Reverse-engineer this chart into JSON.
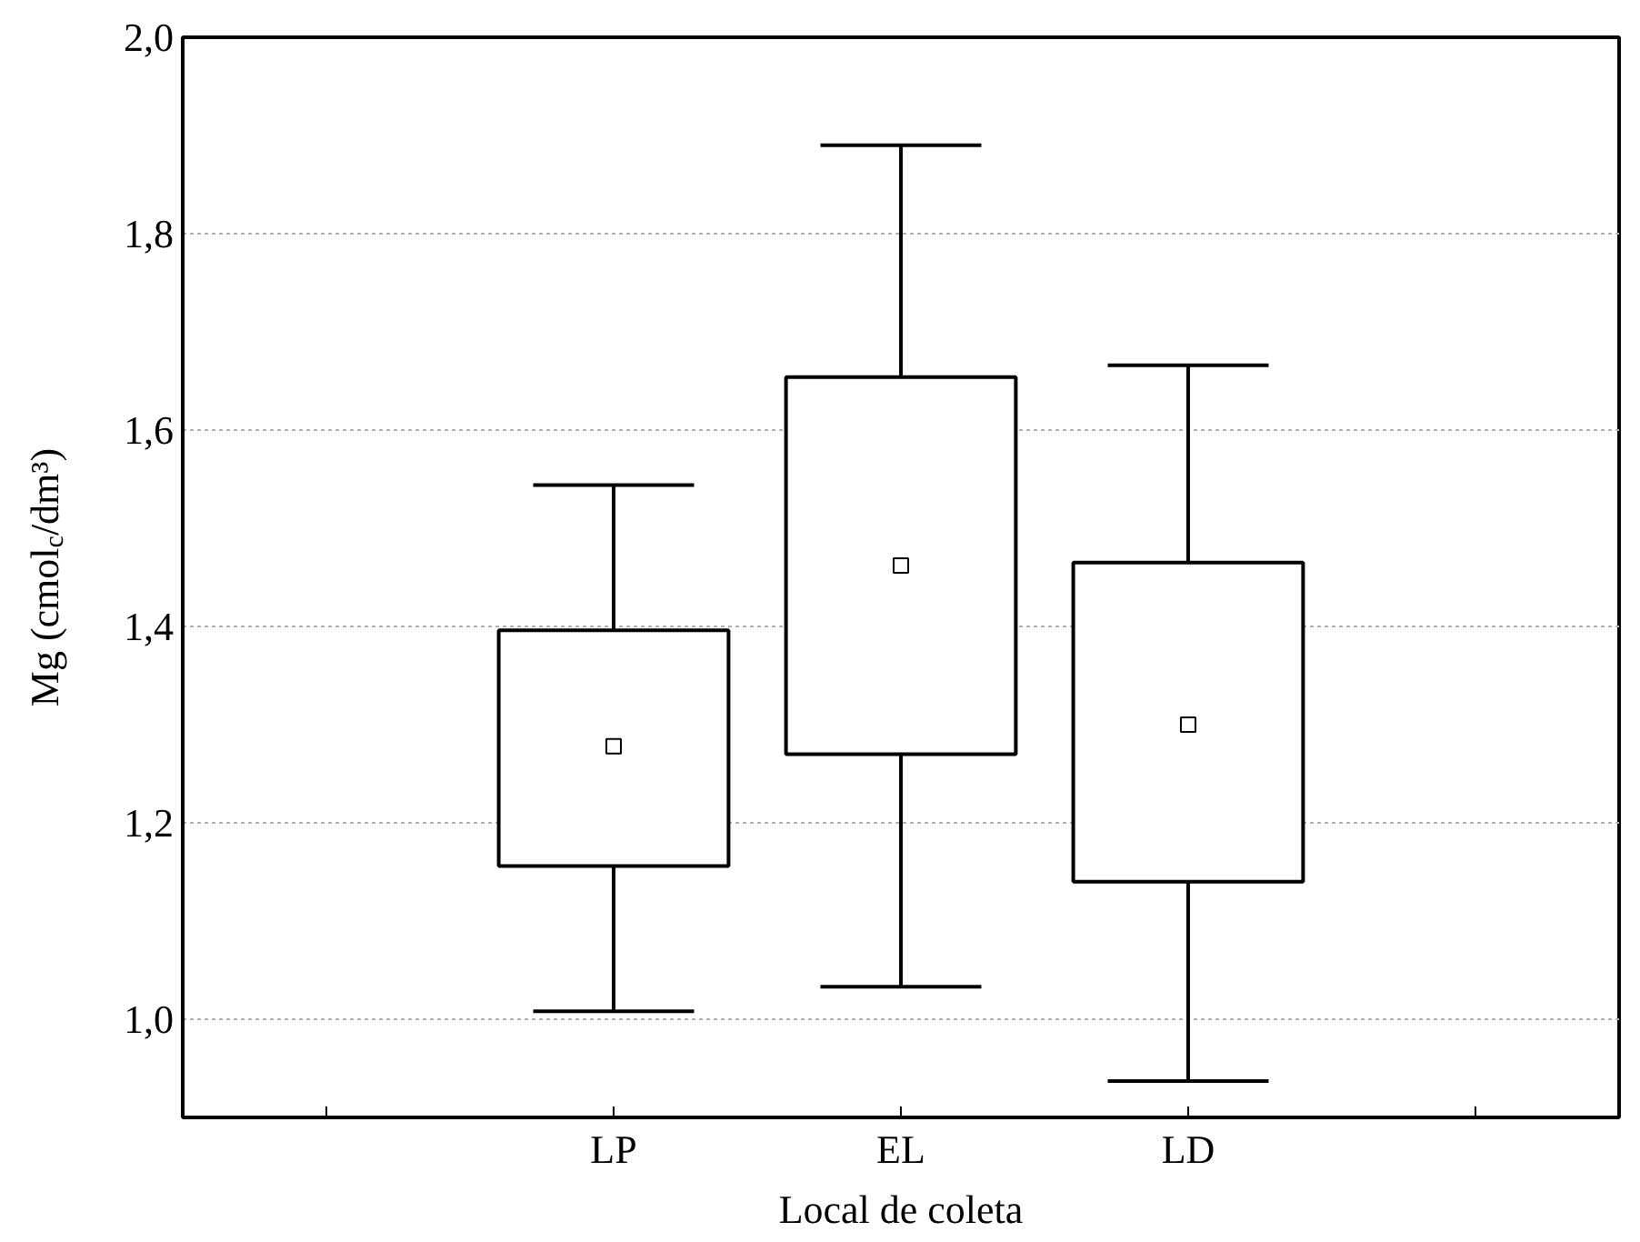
{
  "chart_data": {
    "type": "box",
    "xlabel": "Local de coleta",
    "ylabel": "Mg (cmol$_{c}$/dm³)",
    "categories": [
      null,
      "LP",
      "EL",
      "LD",
      null
    ],
    "boxes": [
      null,
      {
        "low": 1.008,
        "q1": 1.156,
        "median": 1.278,
        "q3": 1.396,
        "high": 1.544
      },
      {
        "low": 1.033,
        "q1": 1.27,
        "median": 1.462,
        "q3": 1.654,
        "high": 1.89
      },
      {
        "low": 0.937,
        "q1": 1.14,
        "median": 1.3,
        "q3": 1.465,
        "high": 1.666
      },
      null
    ],
    "color": "#ffffff",
    "ylim": [
      0.9,
      2.0
    ],
    "yticks": [
      {
        "value": 1.0,
        "label": "1,0"
      },
      {
        "value": 1.2,
        "label": "1,2"
      },
      {
        "value": 1.4,
        "label": "1,4"
      },
      {
        "value": 1.6,
        "label": "1,6"
      },
      {
        "value": 1.8,
        "label": "1,8"
      },
      {
        "value": 2.0,
        "label": "2,0"
      }
    ],
    "grid": "y"
  }
}
